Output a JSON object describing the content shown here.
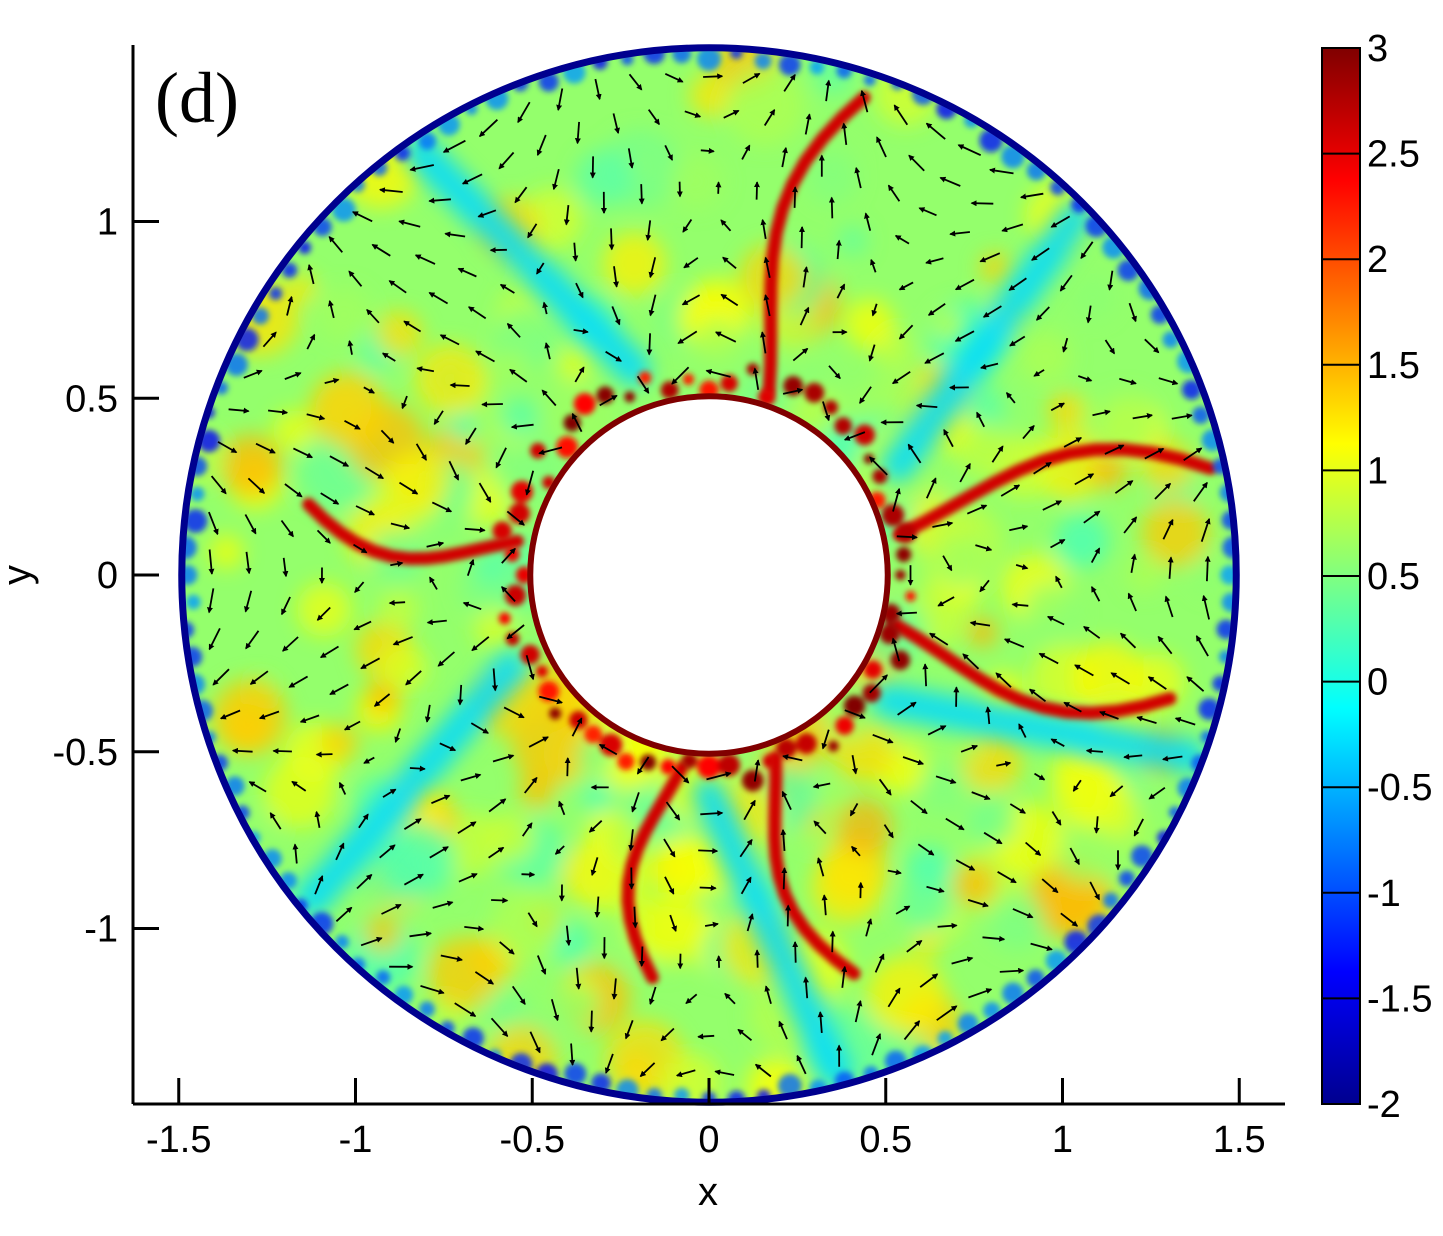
{
  "chart_data": {
    "type": "heatmap",
    "panel_label": "(d)",
    "xlabel": "x",
    "ylabel": "y",
    "xlim": [
      -1.63,
      1.63
    ],
    "ylim": [
      -1.48,
      1.48
    ],
    "x_ticks": [
      -1.5,
      -1,
      -0.5,
      0,
      0.5,
      1,
      1.5
    ],
    "x_tick_labels": [
      "-1.5",
      "-1",
      "-0.5",
      "0",
      "0.5",
      "1",
      "1.5"
    ],
    "y_ticks": [
      -1,
      -0.5,
      0,
      0.5,
      1
    ],
    "y_tick_labels": [
      "-1",
      "-0.5",
      "0",
      "0.5",
      "1"
    ],
    "domain": {
      "shape": "annulus",
      "inner_radius": 0.5,
      "outer_radius": 1.5
    },
    "colorbar": {
      "range": [
        -2,
        3
      ],
      "ticks": [
        3,
        2.5,
        2,
        1.5,
        1,
        0.5,
        0,
        -0.5,
        -1,
        -1.5,
        -2
      ],
      "tick_labels": [
        "3",
        "2.5",
        "2",
        "1.5",
        "1",
        "0.5",
        "0",
        "-0.5",
        "-1",
        "-1.5",
        "-2"
      ],
      "colormap": "jet",
      "colors": [
        "#00008f",
        "#0000ff",
        "#0080ff",
        "#00ffff",
        "#80ff80",
        "#ffff00",
        "#ff8000",
        "#ff0000",
        "#800000"
      ]
    },
    "background_value": 0.6,
    "inner_wall_value": 3,
    "outer_wall_value": -2,
    "streaks": [
      {
        "theta_deg": 12,
        "r_start": 0.55,
        "r_end": 1.45,
        "value": 2.6
      },
      {
        "theta_deg": 72,
        "r_start": 0.55,
        "r_end": 1.42,
        "value": 2.6
      },
      {
        "theta_deg": 170,
        "r_start": 0.55,
        "r_end": 1.15,
        "value": 2.6
      },
      {
        "theta_deg": 262,
        "r_start": 0.55,
        "r_end": 1.15,
        "value": 2.6
      },
      {
        "theta_deg": 290,
        "r_start": 0.55,
        "r_end": 1.2,
        "value": 2.6
      },
      {
        "theta_deg": 345,
        "r_start": 0.55,
        "r_end": 1.35,
        "value": 2.6
      }
    ],
    "low_bands": [
      {
        "theta_deg": 30,
        "value": -0.3
      },
      {
        "theta_deg": 110,
        "value": -0.3
      },
      {
        "theta_deg": 205,
        "value": -0.3
      },
      {
        "theta_deg": 270,
        "value": -0.3
      },
      {
        "theta_deg": 325,
        "value": -0.3
      }
    ],
    "vector_field": "velocity arrows overlaid, forming counter-rotating vortex cells between the radial streaks"
  }
}
